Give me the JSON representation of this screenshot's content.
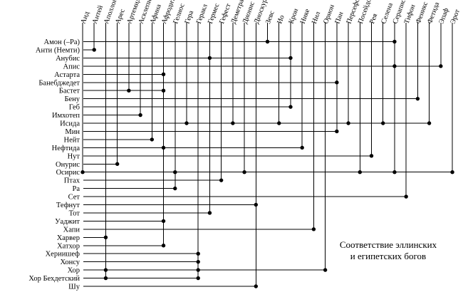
{
  "caption": [
    "Соответствие эллинских",
    "и египетских богов"
  ],
  "greek_gods": [
    "Аид",
    "Антей",
    "Аполлон",
    "Арес",
    "Артемида",
    "Асклепий",
    "Афина",
    "Афродита",
    "Гелиос",
    "Гера",
    "Геракл",
    "Гермес",
    "Гефест",
    "Деметра",
    "Дионис",
    "Диоскуры",
    "Зевс",
    "Ио",
    "Крон",
    "Нике",
    "Нил",
    "Орион",
    "Пан",
    "Персефона",
    "Посейдон",
    "Рея",
    "Селена",
    "Сераписе",
    "Тифон",
    "Феникс",
    "Фетида",
    "Эпаф",
    "Эрот"
  ],
  "egyptian_gods": [
    "Амон (–Ра)",
    "Анти (Немти)",
    "Анубис",
    "Апис",
    "Астарта",
    "Банебджедет",
    "Бастет",
    "Бену",
    "Геб",
    "Имхотеп",
    "Исида",
    "Мин",
    "Нейт",
    "Нефтида",
    "Нут",
    "Онурис",
    "Осирис",
    "Птах",
    "Ра",
    "Сет",
    "Тефнут",
    "Тот",
    "Уаджит",
    "Хапи",
    "Харвер",
    "Хатхор",
    "Хериишеф",
    "Хонсу",
    "Хор",
    "Хор Бехдетский",
    "Шу"
  ],
  "connections": {
    "Амон (–Ра)": [
      "Зевс",
      "Сераписе"
    ],
    "Анти (Немти)": [
      "Антей"
    ],
    "Анубис": [
      "Гермес",
      "Крон"
    ],
    "Апис": [
      "Сераписе",
      "Эпаф"
    ],
    "Астарта": [
      "Афродита"
    ],
    "Банебджедет": [
      "Пан"
    ],
    "Бастет": [
      "Артемида",
      "Афродита"
    ],
    "Бену": [
      "Феникс"
    ],
    "Геб": [
      "Крон"
    ],
    "Имхотеп": [
      "Асклепий"
    ],
    "Исида": [
      "Гера",
      "Деметра",
      "Ио",
      "Персефона",
      "Селена",
      "Фетида"
    ],
    "Мин": [
      "Пан"
    ],
    "Нейт": [
      "Афина"
    ],
    "Нефтида": [
      "Афродита",
      "Нике"
    ],
    "Нут": [
      "Рея"
    ],
    "Онурис": [
      "Арес"
    ],
    "Осирис": [
      "Аид",
      "Гелиос",
      "Дионис",
      "Посейдон",
      "Сераписе",
      "Эрот"
    ],
    "Птах": [
      "Гефест"
    ],
    "Ра": [
      "Гелиос"
    ],
    "Сет": [
      "Тифон"
    ],
    "Тефнут": [
      "Диоскуры"
    ],
    "Тот": [
      "Гермес"
    ],
    "Уаджит": [
      "Афродита"
    ],
    "Хапи": [
      "Нил"
    ],
    "Харвер": [
      "Аполлон"
    ],
    "Хатхор": [
      "Афродита"
    ],
    "Хериишеф": [
      "Геракл"
    ],
    "Хонсу": [
      "Геракл"
    ],
    "Хор": [
      "Аполлон",
      "Геракл",
      "Орион"
    ],
    "Хор Бехдетский": [
      "Аполлон",
      "Геракл"
    ],
    "Шу": [
      "Диоскуры"
    ]
  }
}
